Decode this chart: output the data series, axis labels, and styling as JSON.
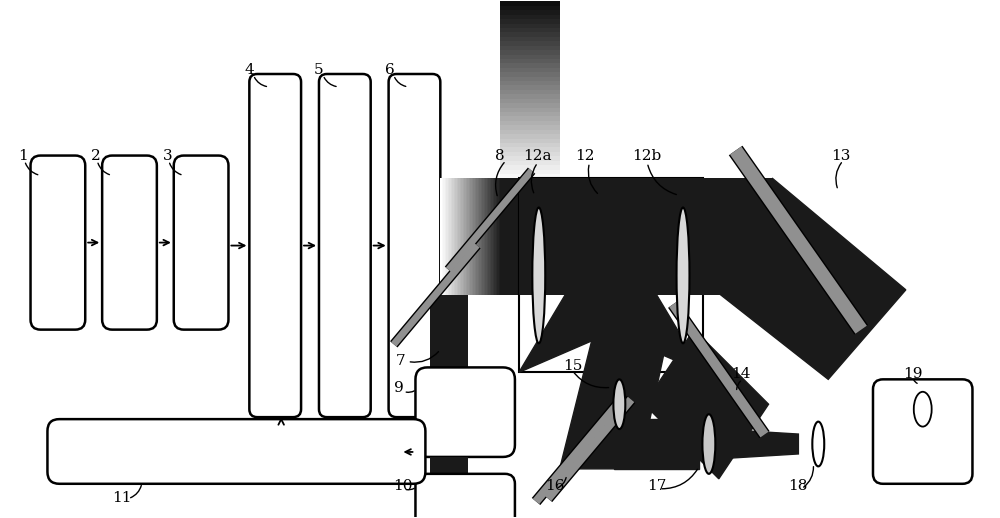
{
  "bg_color": "#ffffff",
  "dark": "#1a1a1a",
  "gray": "#909090",
  "light_gray": "#c8c8c8",
  "black": "#000000"
}
